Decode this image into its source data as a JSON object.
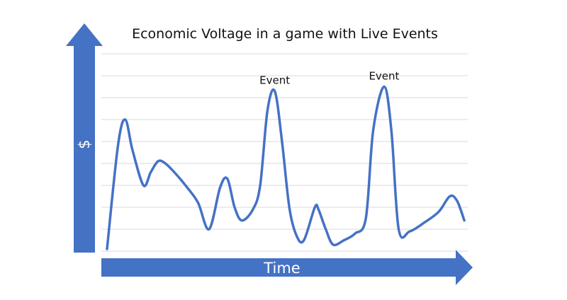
{
  "chart_data": {
    "type": "line",
    "title": "Economic Voltage in a game with Live Events",
    "xlabel": "Time",
    "ylabel": "$",
    "grid": true,
    "legend": "none",
    "ylim": [
      0,
      10
    ],
    "xlim": [
      0,
      100
    ],
    "line_color": "#4472c4",
    "axis_color": "#4472c4",
    "series": [
      {
        "values": [
          [
            0,
            0.1
          ],
          [
            3,
            4.8
          ],
          [
            5,
            6.0
          ],
          [
            7,
            4.6
          ],
          [
            10,
            3.0
          ],
          [
            12,
            3.6
          ],
          [
            14,
            4.1
          ],
          [
            16,
            4.0
          ],
          [
            19,
            3.5
          ],
          [
            22,
            2.9
          ],
          [
            25,
            2.2
          ],
          [
            28,
            1.0
          ],
          [
            31,
            2.9
          ],
          [
            33,
            3.3
          ],
          [
            35,
            2.0
          ],
          [
            37,
            1.4
          ],
          [
            40,
            1.9
          ],
          [
            42,
            3.0
          ],
          [
            44,
            6.4
          ],
          [
            46,
            7.3
          ],
          [
            48,
            5.0
          ],
          [
            50,
            2.0
          ],
          [
            52,
            0.7
          ],
          [
            54,
            0.5
          ],
          [
            57,
            2.0
          ],
          [
            58,
            1.9
          ],
          [
            60,
            1.0
          ],
          [
            62,
            0.3
          ],
          [
            65,
            0.5
          ],
          [
            68,
            0.8
          ],
          [
            71,
            1.5
          ],
          [
            73,
            5.5
          ],
          [
            76,
            7.5
          ],
          [
            78,
            5.5
          ],
          [
            80,
            1.0
          ],
          [
            83,
            0.9
          ],
          [
            87,
            1.3
          ],
          [
            91,
            1.8
          ],
          [
            94,
            2.5
          ],
          [
            96,
            2.3
          ],
          [
            98,
            1.4
          ]
        ]
      }
    ],
    "annotations": [
      {
        "text": "Event",
        "x": 46,
        "y": 7.3
      },
      {
        "text": "Event",
        "x": 76,
        "y": 7.5
      }
    ]
  }
}
